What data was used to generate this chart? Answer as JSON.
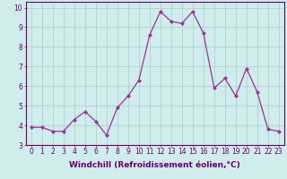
{
  "x": [
    0,
    1,
    2,
    3,
    4,
    5,
    6,
    7,
    8,
    9,
    10,
    11,
    12,
    13,
    14,
    15,
    16,
    17,
    18,
    19,
    20,
    21,
    22,
    23
  ],
  "y": [
    3.9,
    3.9,
    3.7,
    3.7,
    4.3,
    4.7,
    4.2,
    3.5,
    4.9,
    5.5,
    6.3,
    8.6,
    9.8,
    9.3,
    9.2,
    9.8,
    8.7,
    5.9,
    6.4,
    5.5,
    6.9,
    5.7,
    3.8,
    3.7
  ],
  "line_color": "#993399",
  "marker": "D",
  "markersize": 2.0,
  "linewidth": 0.9,
  "bg_color": "#d0ecec",
  "grid_color": "#aacccc",
  "xlabel": "Windchill (Refroidissement éolien,°C)",
  "xlabel_fontsize": 6.5,
  "ylabel_ticks": [
    3,
    4,
    5,
    6,
    7,
    8,
    9,
    10
  ],
  "xtick_labels": [
    "0",
    "1",
    "2",
    "3",
    "4",
    "5",
    "6",
    "7",
    "8",
    "9",
    "10",
    "11",
    "12",
    "13",
    "14",
    "15",
    "16",
    "17",
    "18",
    "19",
    "20",
    "21",
    "22",
    "23"
  ],
  "xlim": [
    -0.5,
    23.5
  ],
  "ylim": [
    3,
    10.3
  ],
  "tick_fontsize": 5.5
}
